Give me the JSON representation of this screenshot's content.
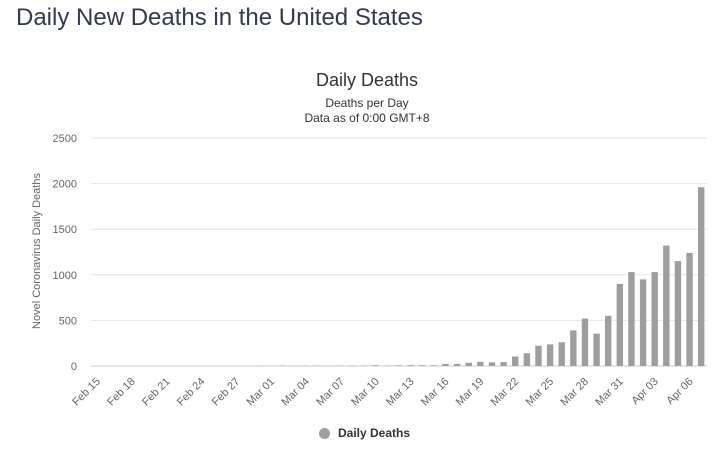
{
  "page": {
    "heading": "Daily New Deaths in the United States"
  },
  "colors": {
    "bar": "#9e9e9e",
    "grid": "#e6e6e6",
    "axis_text": "#666666"
  },
  "chart_data": {
    "type": "bar",
    "title": "Daily Deaths",
    "subtitle_lines": [
      "Deaths per Day",
      "Data as of 0:00 GMT+8"
    ],
    "ylabel": "Novel Coronavirus Daily Deaths",
    "xlabel": "",
    "ylim": [
      0,
      2500
    ],
    "yticks": [
      0,
      500,
      1000,
      1500,
      2000,
      2500
    ],
    "grid": true,
    "legend_position": "bottom-center",
    "categories": [
      "Feb 15",
      "Feb 16",
      "Feb 17",
      "Feb 18",
      "Feb 19",
      "Feb 20",
      "Feb 21",
      "Feb 22",
      "Feb 23",
      "Feb 24",
      "Feb 25",
      "Feb 26",
      "Feb 27",
      "Feb 28",
      "Feb 29",
      "Mar 01",
      "Mar 02",
      "Mar 03",
      "Mar 04",
      "Mar 05",
      "Mar 06",
      "Mar 07",
      "Mar 08",
      "Mar 09",
      "Mar 10",
      "Mar 11",
      "Mar 12",
      "Mar 13",
      "Mar 14",
      "Mar 15",
      "Mar 16",
      "Mar 17",
      "Mar 18",
      "Mar 19",
      "Mar 20",
      "Mar 21",
      "Mar 22",
      "Mar 23",
      "Mar 24",
      "Mar 25",
      "Mar 26",
      "Mar 27",
      "Mar 28",
      "Mar 29",
      "Mar 30",
      "Mar 31",
      "Apr 01",
      "Apr 02",
      "Apr 03",
      "Apr 04",
      "Apr 05",
      "Apr 06",
      "Apr 07"
    ],
    "tick_labels": [
      "Feb 15",
      "Feb 18",
      "Feb 21",
      "Feb 24",
      "Feb 27",
      "Mar 01",
      "Mar 04",
      "Mar 07",
      "Mar 10",
      "Mar 13",
      "Mar 16",
      "Mar 19",
      "Mar 22",
      "Mar 25",
      "Mar 28",
      "Mar 31",
      "Apr 03",
      "Apr 06"
    ],
    "series": [
      {
        "name": "Daily Deaths",
        "values": [
          0,
          0,
          0,
          0,
          0,
          0,
          0,
          0,
          0,
          0,
          0,
          0,
          0,
          0,
          1,
          1,
          4,
          1,
          3,
          3,
          2,
          3,
          4,
          4,
          8,
          4,
          7,
          9,
          8,
          7,
          22,
          23,
          36,
          46,
          40,
          43,
          104,
          140,
          222,
          237,
          260,
          390,
          520,
          355,
          550,
          900,
          1030,
          950,
          1030,
          1320,
          1150,
          1240,
          1960
        ]
      }
    ]
  },
  "legend": {
    "label": "Daily Deaths"
  }
}
